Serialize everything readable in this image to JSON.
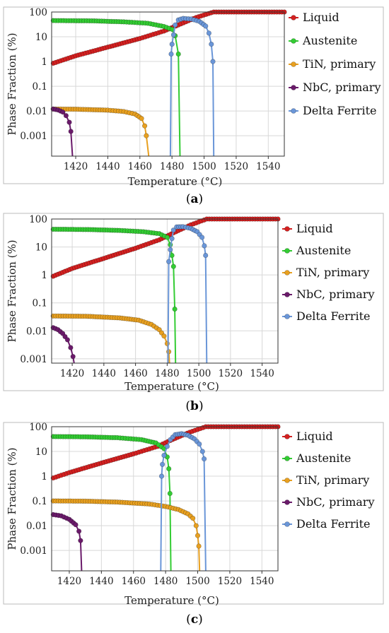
{
  "chart_data": [
    {
      "panel": "a",
      "type": "line",
      "caption": "(a)",
      "xlabel": "Temperature (°C)",
      "ylabel": "Phase Fraction (%)",
      "xlim": [
        1405,
        1550
      ],
      "ylim": [
        0.00015,
        100
      ],
      "yscale": "log",
      "xticks": [
        1420,
        1440,
        1460,
        1480,
        1500,
        1520,
        1540
      ],
      "yticks": [
        100,
        10,
        1,
        0.1,
        0.01,
        0.001
      ],
      "ytick_labels": [
        "100",
        "10",
        "1",
        "0.1",
        "0.01",
        "0.001"
      ],
      "grid": true,
      "legend_position": "right",
      "series": [
        {
          "name": "Liquid",
          "color": "#d42020",
          "points": [
            [
              1406,
              0.85
            ],
            [
              1420,
              1.7
            ],
            [
              1440,
              3.8
            ],
            [
              1460,
              8.5
            ],
            [
              1475,
              17
            ],
            [
              1484,
              30
            ],
            [
              1495,
              60
            ],
            [
              1506,
              100
            ],
            [
              1550,
              100
            ]
          ]
        },
        {
          "name": "Austenite",
          "color": "#33cc33",
          "points": [
            [
              1406,
              45
            ],
            [
              1430,
              44
            ],
            [
              1450,
              40
            ],
            [
              1465,
              35
            ],
            [
              1475,
              26
            ],
            [
              1480,
              20
            ],
            [
              1482,
              11
            ],
            [
              1484,
              2
            ],
            [
              1485,
              0.00015
            ]
          ]
        },
        {
          "name": "TiN, primary",
          "color": "#e8a020",
          "points": [
            [
              1406,
              0.012
            ],
            [
              1420,
              0.0118
            ],
            [
              1440,
              0.0108
            ],
            [
              1450,
              0.0095
            ],
            [
              1457,
              0.0075
            ],
            [
              1461,
              0.005
            ],
            [
              1463,
              0.0025
            ],
            [
              1464,
              0.001
            ],
            [
              1465.5,
              0.00015
            ]
          ]
        },
        {
          "name": "NbC, primary",
          "color": "#6a1a6a",
          "points": [
            [
              1406,
              0.012
            ],
            [
              1409,
              0.011
            ],
            [
              1412,
              0.009
            ],
            [
              1414,
              0.0065
            ],
            [
              1416,
              0.0035
            ],
            [
              1417,
              0.0015
            ],
            [
              1418,
              0.00015
            ]
          ]
        },
        {
          "name": "Delta Ferrite",
          "color": "#6a96d8",
          "points": [
            [
              1479,
              0.00015
            ],
            [
              1479.5,
              2
            ],
            [
              1480,
              5
            ],
            [
              1481,
              12
            ],
            [
              1482,
              30
            ],
            [
              1484,
              48
            ],
            [
              1487,
              55
            ],
            [
              1492,
              52
            ],
            [
              1497,
              42
            ],
            [
              1501,
              27
            ],
            [
              1503,
              14
            ],
            [
              1504.5,
              5
            ],
            [
              1505.5,
              1
            ],
            [
              1506,
              0.00015
            ]
          ]
        }
      ]
    },
    {
      "panel": "b",
      "type": "line",
      "caption": "(b)",
      "xlabel": "Temperature (°C)",
      "ylabel": "Phase Fraction (%)",
      "xlim": [
        1407,
        1550
      ],
      "ylim": [
        0.0007,
        100
      ],
      "yscale": "log",
      "xticks": [
        1420,
        1440,
        1460,
        1480,
        1500,
        1520,
        1540
      ],
      "yticks": [
        100,
        10,
        1,
        0.1,
        0.01,
        0.001
      ],
      "ytick_labels": [
        "100",
        "10",
        "1",
        "0.1",
        "0.01",
        "0.001"
      ],
      "grid": true,
      "legend_position": "right",
      "series": [
        {
          "name": "Liquid",
          "color": "#d42020",
          "points": [
            [
              1408,
              0.9
            ],
            [
              1420,
              1.7
            ],
            [
              1440,
              3.9
            ],
            [
              1460,
              9
            ],
            [
              1475,
              18
            ],
            [
              1484,
              32
            ],
            [
              1495,
              62
            ],
            [
              1505,
              100
            ],
            [
              1550,
              100
            ]
          ]
        },
        {
          "name": "Austenite",
          "color": "#33cc33",
          "points": [
            [
              1408,
              43
            ],
            [
              1430,
              42
            ],
            [
              1450,
              39
            ],
            [
              1465,
              35
            ],
            [
              1475,
              30
            ],
            [
              1480,
              22
            ],
            [
              1482,
              12
            ],
            [
              1483,
              5
            ],
            [
              1484,
              2
            ],
            [
              1484.8,
              0.06
            ],
            [
              1485.3,
              0.0007
            ]
          ]
        },
        {
          "name": "TiN, primary",
          "color": "#e8a020",
          "points": [
            [
              1408,
              0.034
            ],
            [
              1430,
              0.033
            ],
            [
              1450,
              0.029
            ],
            [
              1462,
              0.024
            ],
            [
              1470,
              0.017
            ],
            [
              1475,
              0.011
            ],
            [
              1478,
              0.0065
            ],
            [
              1480,
              0.0035
            ],
            [
              1481,
              0.0018
            ],
            [
              1481.5,
              0.0007
            ]
          ]
        },
        {
          "name": "NbC, primary",
          "color": "#6a1a6a",
          "points": [
            [
              1408,
              0.013
            ],
            [
              1411,
              0.011
            ],
            [
              1414,
              0.008
            ],
            [
              1417,
              0.0048
            ],
            [
              1419,
              0.0025
            ],
            [
              1420.5,
              0.0012
            ],
            [
              1421.2,
              0.0007
            ]
          ]
        },
        {
          "name": "Delta Ferrite",
          "color": "#6a96d8",
          "points": [
            [
              1480.5,
              0.0007
            ],
            [
              1481,
              3
            ],
            [
              1482,
              8
            ],
            [
              1483,
              20
            ],
            [
              1484,
              40
            ],
            [
              1486,
              52
            ],
            [
              1490,
              53
            ],
            [
              1495,
              46
            ],
            [
              1499,
              35
            ],
            [
              1502,
              22
            ],
            [
              1503.5,
              11
            ],
            [
              1504.3,
              5
            ],
            [
              1505,
              0.0007
            ]
          ]
        }
      ]
    },
    {
      "panel": "c",
      "type": "line",
      "caption": "(c)",
      "xlabel": "Temperature (°C)",
      "ylabel": "Phase Fraction (%)",
      "xlim": [
        1409,
        1550
      ],
      "ylim": [
        0.00015,
        100
      ],
      "yscale": "log",
      "xticks": [
        1420,
        1440,
        1460,
        1480,
        1500,
        1520,
        1540
      ],
      "yticks": [
        100,
        10,
        1,
        0.1,
        0.01,
        0.001
      ],
      "ytick_labels": [
        "100",
        "10",
        "1",
        "0.1",
        "0.01",
        "0.001"
      ],
      "grid": true,
      "legend_position": "right",
      "series": [
        {
          "name": "Liquid",
          "color": "#d42020",
          "points": [
            [
              1410,
              0.85
            ],
            [
              1420,
              1.4
            ],
            [
              1440,
              3.4
            ],
            [
              1460,
              8
            ],
            [
              1475,
              16
            ],
            [
              1483,
              28
            ],
            [
              1495,
              60
            ],
            [
              1505,
              100
            ],
            [
              1550,
              100
            ]
          ]
        },
        {
          "name": "Austenite",
          "color": "#33cc33",
          "points": [
            [
              1410,
              40
            ],
            [
              1430,
              39
            ],
            [
              1450,
              36
            ],
            [
              1465,
              30
            ],
            [
              1474,
              22
            ],
            [
              1479,
              13
            ],
            [
              1481,
              6
            ],
            [
              1482,
              2
            ],
            [
              1482.7,
              0.2
            ],
            [
              1483.3,
              0.00015
            ]
          ]
        },
        {
          "name": "TiN, primary",
          "color": "#e8a020",
          "points": [
            [
              1410,
              0.1
            ],
            [
              1430,
              0.098
            ],
            [
              1450,
              0.09
            ],
            [
              1470,
              0.075
            ],
            [
              1480,
              0.06
            ],
            [
              1488,
              0.045
            ],
            [
              1494,
              0.03
            ],
            [
              1497,
              0.02
            ],
            [
              1499,
              0.01
            ],
            [
              1500,
              0.004
            ],
            [
              1500.7,
              0.0015
            ],
            [
              1501.2,
              0.00015
            ]
          ]
        },
        {
          "name": "NbC, primary",
          "color": "#6a1a6a",
          "points": [
            [
              1410,
              0.028
            ],
            [
              1415,
              0.025
            ],
            [
              1420,
              0.018
            ],
            [
              1424,
              0.011
            ],
            [
              1426,
              0.006
            ],
            [
              1427,
              0.0025
            ],
            [
              1427.7,
              0.00015
            ]
          ]
        },
        {
          "name": "Delta Ferrite",
          "color": "#6a96d8",
          "points": [
            [
              1477,
              0.00015
            ],
            [
              1477.5,
              1
            ],
            [
              1478,
              3
            ],
            [
              1479,
              7
            ],
            [
              1481,
              16
            ],
            [
              1483,
              30
            ],
            [
              1486,
              48
            ],
            [
              1490,
              52
            ],
            [
              1494,
              45
            ],
            [
              1498,
              32
            ],
            [
              1501,
              20
            ],
            [
              1503,
              10
            ],
            [
              1504,
              5
            ],
            [
              1505,
              0.00015
            ]
          ]
        }
      ]
    }
  ]
}
